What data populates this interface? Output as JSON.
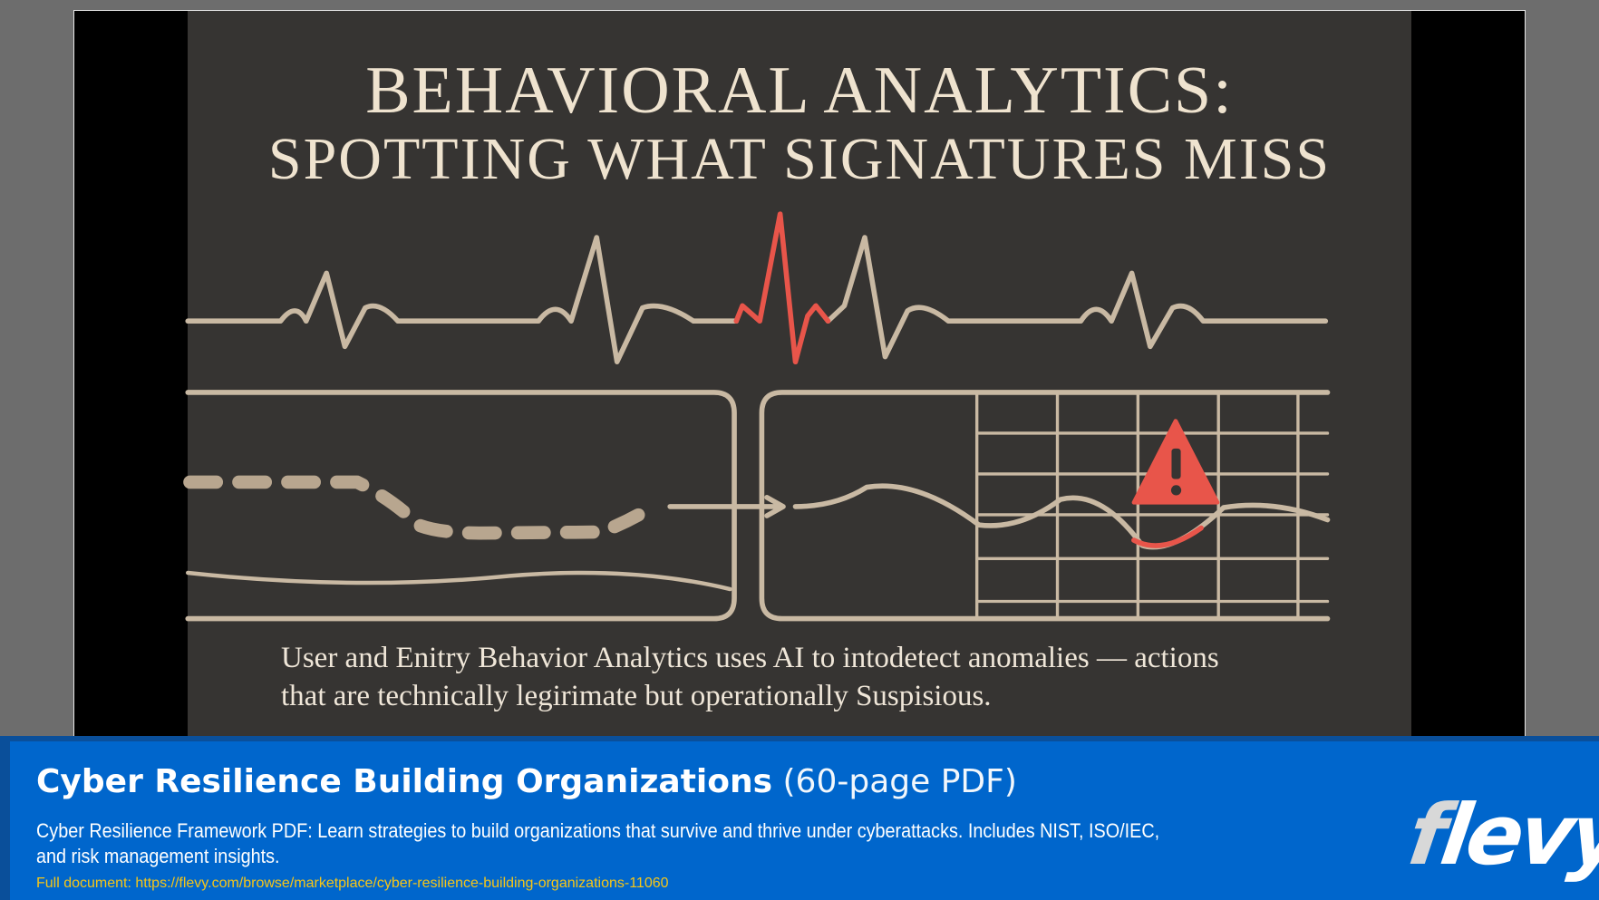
{
  "slide": {
    "title_line1": "BEHAVIORAL ANALYTICS:",
    "title_line2": "SPOTTING WHAT SIGNATURES MISS",
    "caption_line1": "User and Enitry Behavior Analytics uses AI to intodetect anomalies — actions",
    "caption_line2": "that are technically legirimate but operationally Suspisious.",
    "colors": {
      "background": "#363432",
      "line": "#c9b9a3",
      "alert": "#e8554a",
      "text": "#efe6d8"
    },
    "icons": [
      "ecg-waveform",
      "dashed-path",
      "arrow-right",
      "warning-triangle-icon",
      "grid"
    ]
  },
  "banner": {
    "title": "Cyber Resilience Building Organizations",
    "title_suffix": "(60-page PDF)",
    "description_line1": "Cyber Resilience Framework PDF: Learn strategies to build organizations that survive and thrive under cyberattacks. Includes NIST, ISO/IEC,",
    "description_line2": "and risk management insights.",
    "full_document": "Full document: https://flevy.com/browse/marketplace/cyber-resilience-building-organizations-11060",
    "logo": "flevy",
    "colors": {
      "banner": "#0066cc",
      "link": "#f5c518"
    }
  }
}
